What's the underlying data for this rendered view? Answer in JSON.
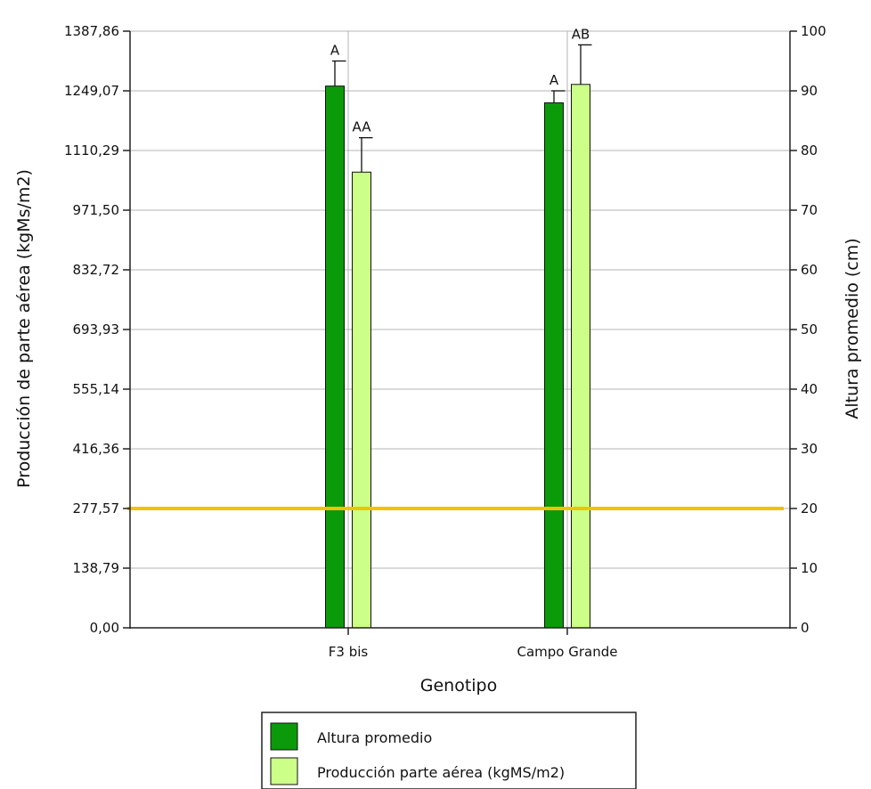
{
  "chart_data": {
    "type": "bar",
    "xlabel": "Genotipo",
    "ylabel_left": "Producción de parte aérea (kgMs/m2)",
    "ylabel_right": "Altura promedio (cm)",
    "left_ticks": [
      "0,00",
      "138,79",
      "277,57",
      "416,36",
      "555,14",
      "693,93",
      "832,72",
      "971,50",
      "1110,29",
      "1249,07",
      "1387,86"
    ],
    "right_ticks": [
      "0",
      "10",
      "20",
      "30",
      "40",
      "50",
      "60",
      "70",
      "80",
      "90",
      "100"
    ],
    "ylim_left": [
      0,
      1387.86
    ],
    "ylim_right": [
      0,
      100
    ],
    "categories": [
      "F3 bis",
      "Campo Grande"
    ],
    "series": [
      {
        "name": "Altura promedio",
        "axis": "right",
        "color": "#0a9a0a",
        "values": [
          90.8,
          88
        ],
        "error": [
          4.2,
          2
        ]
      },
      {
        "name": "Producción parte aérea (kgMS/m2)",
        "axis": "left",
        "color": "#ccff88",
        "values": [
          1060,
          1264
        ],
        "error": [
          80,
          92
        ]
      }
    ],
    "bar_labels": [
      [
        "A",
        "AA"
      ],
      [
        "A",
        "AB"
      ]
    ],
    "reference_line": {
      "value_right": 20,
      "color": "#f2c200"
    },
    "grid": true,
    "legend_position": "bottom"
  }
}
